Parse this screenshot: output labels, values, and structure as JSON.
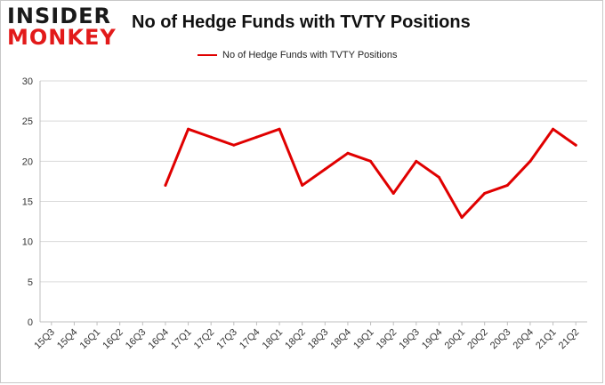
{
  "logo": {
    "line1": "INSIDER",
    "line2": "MONKEY"
  },
  "chart_data": {
    "type": "line",
    "title": "No of Hedge Funds with TVTY Positions",
    "xlabel": "",
    "ylabel": "",
    "ylim": [
      0,
      30
    ],
    "yticks": [
      0,
      5,
      10,
      15,
      20,
      25,
      30
    ],
    "grid": true,
    "legend_position": "top-center",
    "categories": [
      "15Q3",
      "15Q4",
      "16Q1",
      "16Q2",
      "16Q3",
      "16Q4",
      "17Q1",
      "17Q2",
      "17Q3",
      "17Q4",
      "18Q1",
      "18Q2",
      "18Q3",
      "18Q4",
      "19Q1",
      "19Q2",
      "19Q3",
      "19Q4",
      "20Q1",
      "20Q2",
      "20Q3",
      "20Q4",
      "21Q1",
      "21Q2"
    ],
    "series": [
      {
        "name": "No of Hedge Funds with TVTY Positions",
        "color": "#e00000",
        "values": [
          null,
          null,
          null,
          null,
          null,
          17,
          24,
          23,
          22,
          23,
          24,
          17,
          19,
          21,
          20,
          16,
          20,
          18,
          13,
          16,
          17,
          20,
          24,
          22
        ]
      }
    ]
  }
}
